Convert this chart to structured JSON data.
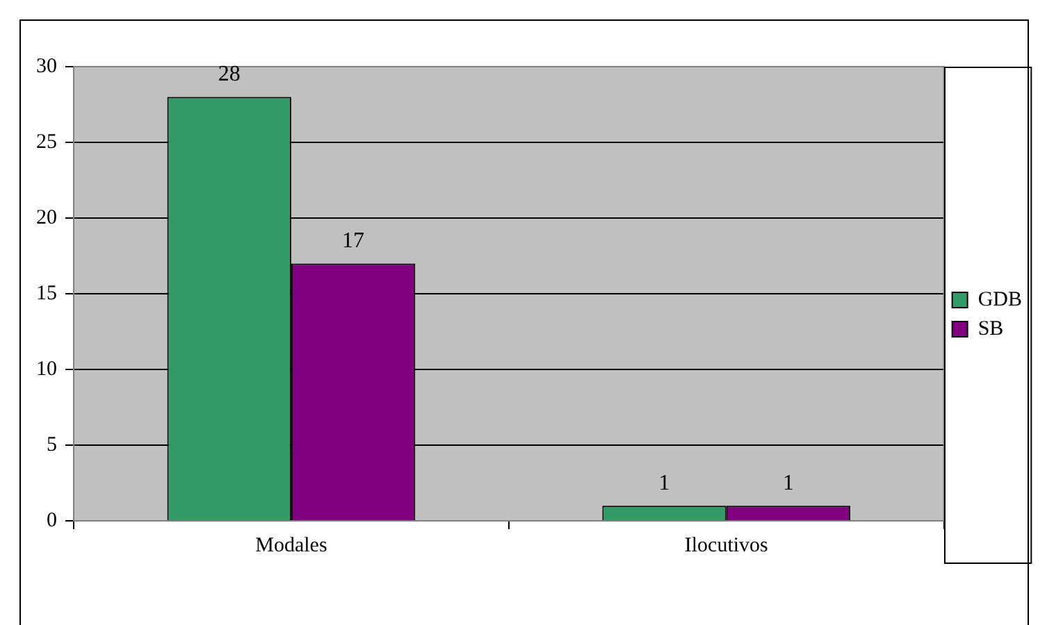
{
  "chart_data": {
    "type": "bar",
    "categories": [
      "Modales",
      "Ilocutivos"
    ],
    "series": [
      {
        "name": "GDB",
        "color": "#339966",
        "values": [
          28,
          1
        ]
      },
      {
        "name": "SB",
        "color": "#800080",
        "values": [
          17,
          1
        ]
      }
    ],
    "ylim": [
      0,
      30
    ],
    "yticks": [
      0,
      5,
      10,
      15,
      20,
      25,
      30
    ],
    "grid": "y",
    "legend": "right",
    "data_labels": true
  }
}
